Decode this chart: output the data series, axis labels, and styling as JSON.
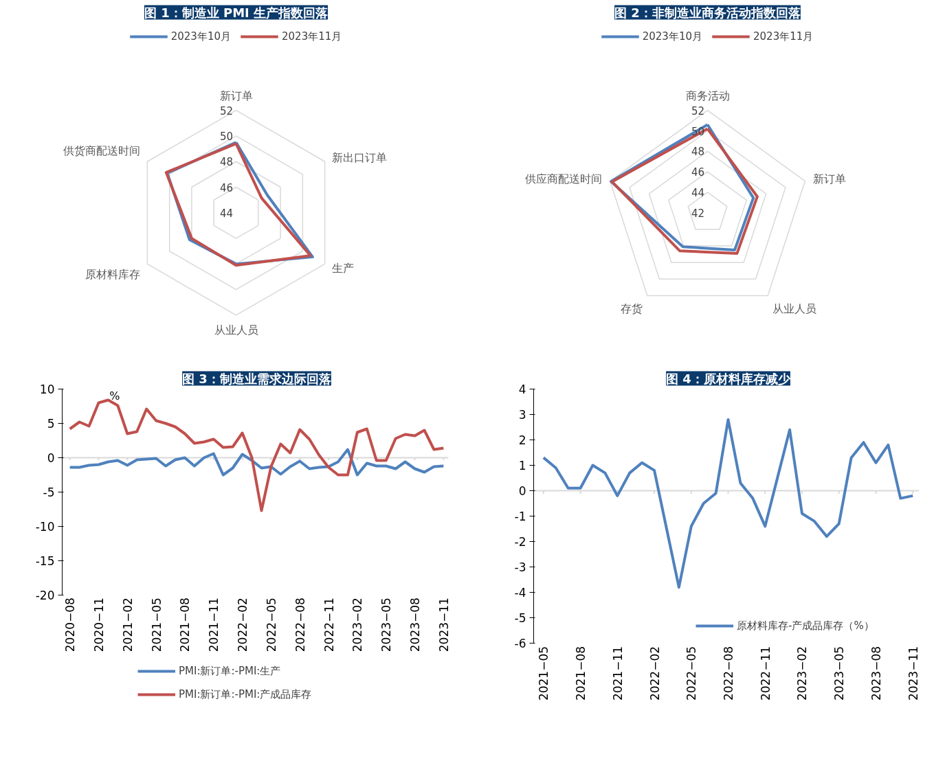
{
  "chart_data": [
    {
      "type": "radar",
      "title": "图 1：制造业 PMI 生产指数回落",
      "categories": [
        "新订单",
        "新出口订单",
        "生产",
        "从业人员",
        "原材料库存",
        "供货商配送时间"
      ],
      "ylim": [
        44,
        52
      ],
      "yticks": [
        44,
        46,
        48,
        50,
        52
      ],
      "grid": true,
      "legend": "top",
      "series": [
        {
          "name": "2023年10月",
          "color": "#4f81bd",
          "values": [
            49.5,
            46.8,
            50.9,
            48.0,
            48.2,
            50.2
          ]
        },
        {
          "name": "2023年11月",
          "color": "#c0504d",
          "values": [
            49.4,
            46.3,
            50.7,
            48.1,
            48.0,
            50.3
          ]
        }
      ]
    },
    {
      "type": "radar",
      "title": "图 2：非制造业商务活动指数回落",
      "categories": [
        "商务活动",
        "新订单",
        "从业人员",
        "存货",
        "供应商配送时间"
      ],
      "ylim": [
        42,
        52
      ],
      "yticks": [
        42,
        44,
        46,
        48,
        50,
        52
      ],
      "grid": true,
      "legend": "top",
      "series": [
        {
          "name": "2023年10月",
          "color": "#4f81bd",
          "values": [
            50.6,
            46.7,
            46.5,
            46.1,
            51.9
          ]
        },
        {
          "name": "2023年11月",
          "color": "#c0504d",
          "values": [
            50.2,
            47.1,
            46.9,
            46.6,
            51.8
          ]
        }
      ]
    },
    {
      "type": "line",
      "title": "图 3：制造业需求边际回落",
      "ylim": [
        -20,
        10
      ],
      "yticks": [
        -20,
        -15,
        -10,
        -5,
        0,
        5,
        10
      ],
      "legend": "bottom",
      "annotations": [
        "%"
      ],
      "categories": [
        "2020−08",
        null,
        null,
        "2020−11",
        null,
        null,
        "2021−02",
        null,
        null,
        "2021−05",
        null,
        null,
        "2021−08",
        null,
        null,
        "2021−11",
        null,
        null,
        "2022−02",
        null,
        null,
        "2022−05",
        null,
        null,
        "2022−08",
        null,
        null,
        "2022−11",
        null,
        null,
        "2023−02",
        null,
        null,
        "2023−05",
        null,
        null,
        "2023−08",
        null,
        null,
        "2023−11"
      ],
      "series": [
        {
          "name": "PMI:新订单:-PMI:生产",
          "color": "#4f81bd",
          "values": [
            -1.4,
            -1.4,
            -1.1,
            -1.0,
            -0.6,
            -0.4,
            -1.1,
            -0.3,
            -0.2,
            -0.1,
            -1.2,
            -0.3,
            0,
            -1.2,
            0,
            0.6,
            -2.5,
            -1.5,
            0.5,
            -0.4,
            -1.5,
            -1.3,
            -2.4,
            -1.3,
            -0.5,
            -1.6,
            -1.4,
            -1.3,
            -0.6,
            1.2,
            -2.5,
            -0.8,
            -1.2,
            -1.2,
            -1.6,
            -0.6,
            -1.6,
            -2.1,
            -1.3,
            -1.2
          ]
        },
        {
          "name": "PMI:新订单:-PMI:产成品库存",
          "color": "#c0504d",
          "values": [
            4.2,
            5.2,
            4.6,
            8.0,
            8.4,
            7.6,
            3.5,
            3.8,
            7.1,
            5.4,
            5.0,
            4.5,
            3.5,
            2.1,
            2.3,
            2.7,
            1.5,
            1.6,
            3.6,
            0,
            -7.7,
            -1.3,
            2.0,
            0.7,
            4.1,
            2.7,
            0.4,
            -1.4,
            -2.5,
            -2.5,
            3.7,
            4.2,
            -0.4,
            -0.4,
            2.8,
            3.4,
            3.2,
            4.0,
            1.2,
            1.4
          ]
        }
      ]
    },
    {
      "type": "line",
      "title": "图 4：原材料库存减少",
      "ylim": [
        -6,
        4
      ],
      "yticks": [
        -6,
        -5,
        -4,
        -3,
        -2,
        -1,
        0,
        1,
        2,
        3,
        4
      ],
      "legend": "bottom right",
      "categories": [
        "2021−05",
        null,
        null,
        "2021−08",
        null,
        null,
        "2021−11",
        null,
        null,
        "2022−02",
        null,
        null,
        "2022−05",
        null,
        null,
        "2022−08",
        null,
        null,
        "2022−11",
        null,
        null,
        "2023−02",
        null,
        null,
        "2023−05",
        null,
        null,
        "2023−08",
        null,
        null,
        "2023−11"
      ],
      "series": [
        {
          "name": "原材料库存-产成品库存（%）",
          "color": "#4f81bd",
          "values": [
            1.3,
            0.9,
            0.1,
            0.1,
            1.0,
            0.7,
            -0.2,
            0.7,
            1.1,
            0.8,
            -1.5,
            -3.8,
            -1.4,
            -0.5,
            -0.1,
            2.8,
            0.3,
            -0.3,
            -1.4,
            0.5,
            2.4,
            -0.9,
            -1.2,
            -1.8,
            -1.3,
            1.3,
            1.9,
            1.1,
            1.8,
            -0.3,
            -0.2
          ]
        }
      ]
    }
  ]
}
